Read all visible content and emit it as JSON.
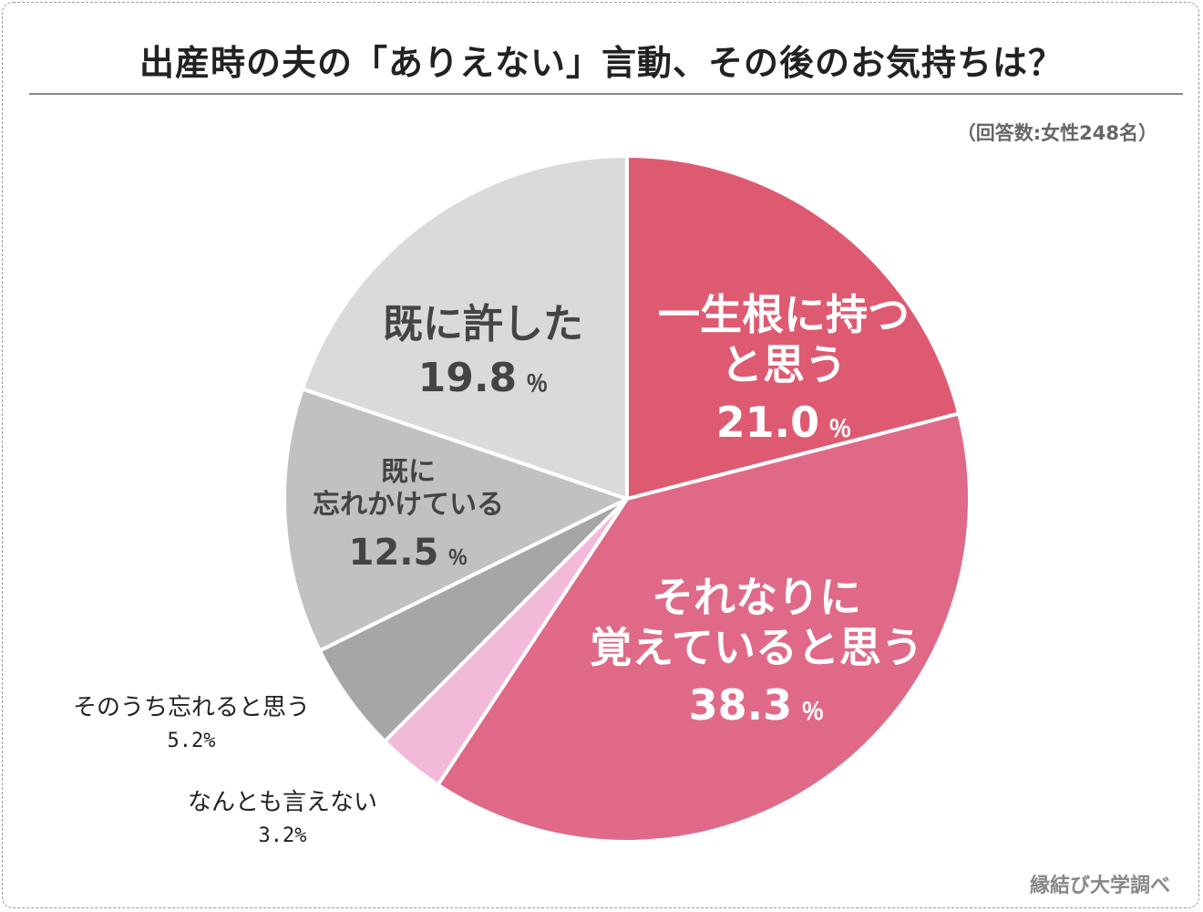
{
  "title": "出産時の夫の「ありえない」言動、その後のお気持ちは？",
  "respondents_note": "（回答数:女性248名）",
  "source_credit": "縁結び大学調べ",
  "percent_sign": "％",
  "chart_data": {
    "type": "pie",
    "title": "出産時の夫の「ありえない」言動、その後のお気持ちは？",
    "unit": "%",
    "direction": "clockwise-from-top",
    "slices": [
      {
        "name_lines": [
          "一生根に持つ",
          "と思う"
        ],
        "value": 21.0,
        "value_text": "21.0",
        "color": "#de5a71",
        "label_color": "#ffffff",
        "label_style": "inside"
      },
      {
        "name_lines": [
          "それなりに",
          "覚えていると思う"
        ],
        "value": 38.3,
        "value_text": "38.3",
        "color": "#e06987",
        "label_color": "#ffffff",
        "label_style": "inside"
      },
      {
        "name_lines": [
          "なんとも言えない"
        ],
        "value": 3.2,
        "value_text": "3.2%",
        "color": "#f2b9d9",
        "label_color": "#222222",
        "label_style": "outside"
      },
      {
        "name_lines": [
          "そのうち忘れると思う"
        ],
        "value": 5.2,
        "value_text": "5.2%",
        "color": "#a6a6a6",
        "label_color": "#222222",
        "label_style": "outside"
      },
      {
        "name_lines": [
          "既に",
          "忘れかけている"
        ],
        "value": 12.5,
        "value_text": "12.5",
        "color": "#c1c1c1",
        "label_color": "#444444",
        "label_style": "inside"
      },
      {
        "name_lines": [
          "既に許した"
        ],
        "value": 19.8,
        "value_text": "19.8",
        "color": "#dadada",
        "label_color": "#444444",
        "label_style": "inside"
      }
    ]
  }
}
